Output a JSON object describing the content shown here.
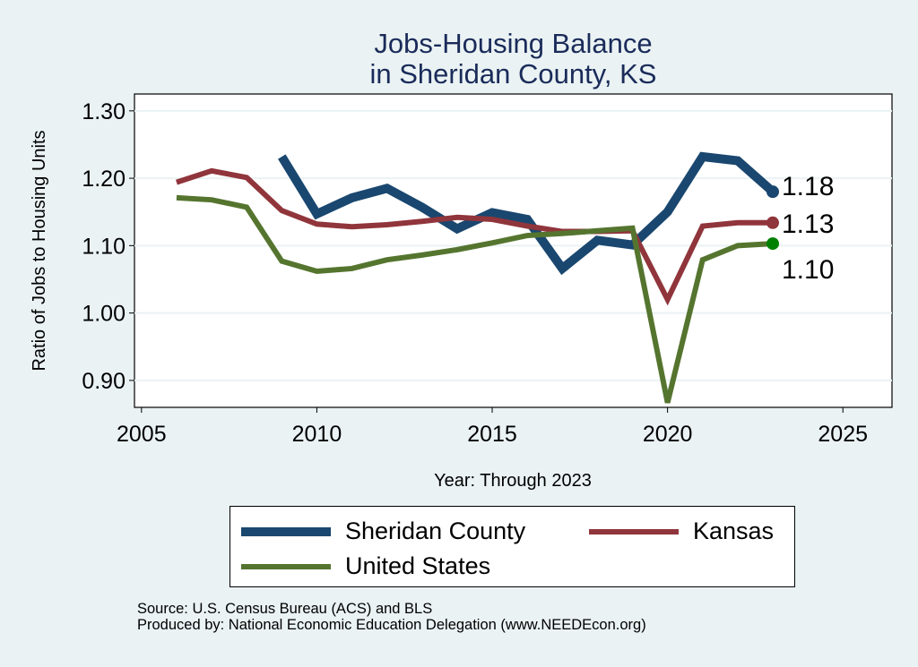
{
  "chart_data": {
    "type": "line",
    "title": [
      "Jobs-Housing Balance",
      "in Sheridan County, KS"
    ],
    "xlabel": "Year: Through 2023",
    "ylabel": "Ratio of Jobs to Housing Units",
    "xlim": [
      2004.8,
      2026.4
    ],
    "ylim": [
      0.86,
      1.325
    ],
    "xticks": [
      "2005",
      "2010",
      "2015",
      "2020",
      "2025"
    ],
    "yticks": [
      "0.90",
      "1.00",
      "1.10",
      "1.20",
      "1.30"
    ],
    "grid": true,
    "legend_position": "bottom",
    "series": [
      {
        "name": "Sheridan County",
        "color": "#1a476f",
        "end_label": "1.18",
        "x": [
          2009,
          2010,
          2011,
          2012,
          2013,
          2014,
          2015,
          2016,
          2017,
          2018,
          2019,
          2020,
          2021,
          2022,
          2023
        ],
        "y": [
          1.232,
          1.147,
          1.171,
          1.185,
          1.157,
          1.125,
          1.149,
          1.139,
          1.066,
          1.108,
          1.101,
          1.15,
          1.232,
          1.226,
          1.18
        ]
      },
      {
        "name": "Kansas",
        "color": "#90353b",
        "end_label": "1.13",
        "x": [
          2006,
          2007,
          2008,
          2009,
          2010,
          2011,
          2012,
          2013,
          2014,
          2015,
          2016,
          2017,
          2018,
          2019,
          2020,
          2021,
          2022,
          2023
        ],
        "y": [
          1.194,
          1.211,
          1.201,
          1.152,
          1.132,
          1.128,
          1.131,
          1.136,
          1.142,
          1.139,
          1.129,
          1.121,
          1.121,
          1.122,
          1.02,
          1.129,
          1.134,
          1.134
        ]
      },
      {
        "name": "United States",
        "color": "#55752f",
        "end_color": "#008000",
        "end_label": "1.10",
        "x": [
          2006,
          2007,
          2008,
          2009,
          2010,
          2011,
          2012,
          2013,
          2014,
          2015,
          2016,
          2017,
          2018,
          2019,
          2020,
          2021,
          2022,
          2023
        ],
        "y": [
          1.171,
          1.168,
          1.157,
          1.077,
          1.062,
          1.066,
          1.079,
          1.086,
          1.094,
          1.104,
          1.115,
          1.118,
          1.122,
          1.126,
          0.867,
          1.079,
          1.1,
          1.103
        ]
      }
    ]
  },
  "source": "Source: U.S. Census Bureau (ACS) and BLS",
  "producer": "Produced by: National Economic Education Delegation (www.NEEDEcon.org)"
}
